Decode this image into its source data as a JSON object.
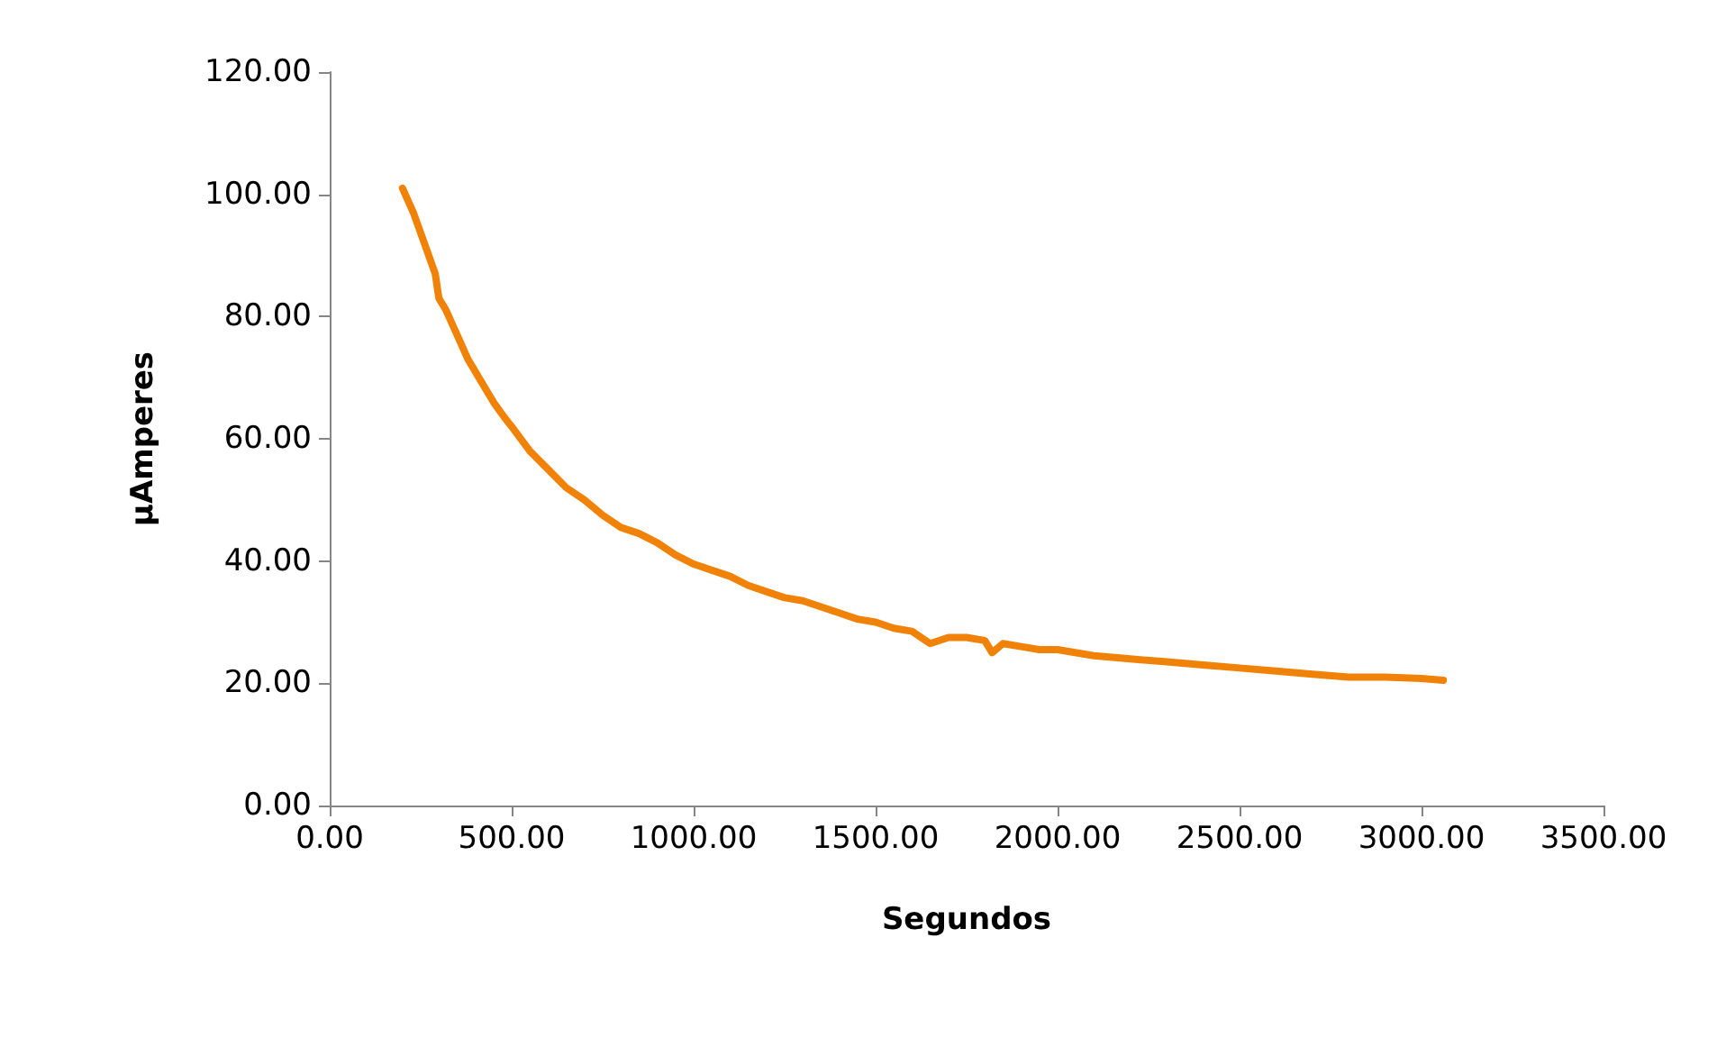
{
  "chart_data": {
    "type": "line",
    "xlabel": "Segundos",
    "ylabel": "µAmperes",
    "marker": "none",
    "line_style": "solid",
    "grid": false,
    "series": [
      {
        "color": "#f08208",
        "x": [
          200,
          230,
          260,
          290,
          300,
          320,
          350,
          380,
          400,
          430,
          450,
          480,
          500,
          550,
          600,
          650,
          700,
          750,
          800,
          850,
          900,
          950,
          1000,
          1050,
          1100,
          1150,
          1200,
          1250,
          1300,
          1350,
          1400,
          1450,
          1500,
          1550,
          1600,
          1650,
          1700,
          1750,
          1800,
          1820,
          1850,
          1900,
          1950,
          2000,
          2100,
          2200,
          2300,
          2400,
          2500,
          2600,
          2700,
          2800,
          2900,
          3000,
          3060
        ],
        "values": [
          101,
          97,
          92,
          87,
          83,
          81,
          77,
          73,
          71,
          68,
          66,
          63.5,
          62,
          58,
          55,
          52,
          50,
          47.5,
          45.5,
          44.5,
          43,
          41,
          39.5,
          38.5,
          37.5,
          36,
          35,
          34,
          33.5,
          32.5,
          31.5,
          30.5,
          30,
          29,
          28.5,
          26.5,
          27.5,
          27.5,
          27,
          25,
          26.5,
          26,
          25.5,
          25.5,
          24.5,
          24,
          23.5,
          23,
          22.5,
          22,
          21.5,
          21,
          21,
          20.8,
          20.5
        ]
      }
    ],
    "xlim": [
      0,
      3500
    ],
    "xticks": [
      {
        "value": 0,
        "label": "0.00"
      },
      {
        "value": 500,
        "label": "500.00"
      },
      {
        "value": 1000,
        "label": "1000.00"
      },
      {
        "value": 1500,
        "label": "1500.00"
      },
      {
        "value": 2000,
        "label": "2000.00"
      },
      {
        "value": 2500,
        "label": "2500.00"
      },
      {
        "value": 3000,
        "label": "3000.00"
      },
      {
        "value": 3500,
        "label": "3500.00"
      }
    ],
    "ylim": [
      0,
      120
    ],
    "yticks": [
      {
        "value": 0,
        "label": "0.00"
      },
      {
        "value": 20,
        "label": "20.00"
      },
      {
        "value": 40,
        "label": "40.00"
      },
      {
        "value": 60,
        "label": "60.00"
      },
      {
        "value": 80,
        "label": "80.00"
      },
      {
        "value": 100,
        "label": "100.00"
      },
      {
        "value": 120,
        "label": "120.00"
      }
    ]
  }
}
